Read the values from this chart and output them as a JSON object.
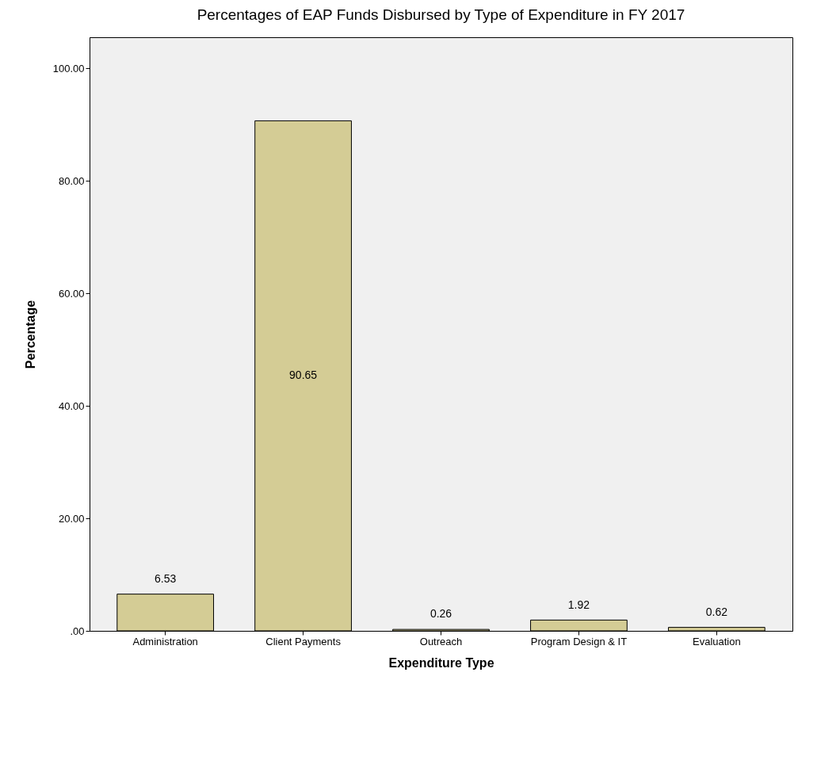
{
  "chart_data": {
    "type": "bar",
    "title": "Percentages of EAP Funds Disbursed by Type of Expenditure in FY 2017",
    "xlabel": "Expenditure Type",
    "ylabel": "Percentage",
    "categories": [
      "Administration",
      "Client Payments",
      "Outreach",
      "Program Design & IT",
      "Evaluation"
    ],
    "values": [
      6.53,
      90.65,
      0.26,
      1.92,
      0.62
    ],
    "color": "#d4cc95",
    "ylim": [
      0,
      105.5
    ],
    "yticks": [
      {
        "value": 0,
        "label": ".00"
      },
      {
        "value": 20,
        "label": "20.00"
      },
      {
        "value": 40,
        "label": "40.00"
      },
      {
        "value": 60,
        "label": "60.00"
      },
      {
        "value": 80,
        "label": "80.00"
      },
      {
        "value": 100,
        "label": "100.00"
      }
    ],
    "data_labels": true,
    "grid": false
  }
}
